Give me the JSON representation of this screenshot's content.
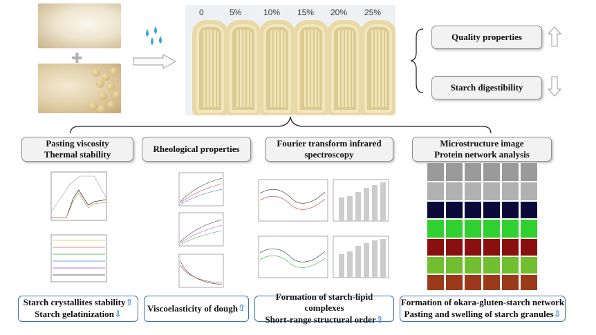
{
  "concentrations": [
    "0",
    "5%",
    "10%",
    "15%",
    "20%",
    "25%"
  ],
  "outcomes": {
    "quality": "Quality properties",
    "digestibility": "Starch digestibility"
  },
  "analyses": {
    "pasting": [
      "Pasting viscosity",
      "Thermal stability"
    ],
    "rheology": "Rheological properties",
    "ftir": [
      "Fourier transform infrared",
      "spectroscopy"
    ],
    "micro": [
      "Microstructure image",
      "Protein network analysis"
    ]
  },
  "results": {
    "r1": [
      "Starch crystallites stability",
      "Starch gelatinization"
    ],
    "r2": "Viscoelasticity of dough",
    "r3": [
      "Formation of starch-lipid complexes",
      "Short-range structural order"
    ],
    "r4": [
      "Formation of okara-gluten-starch network",
      "Pasting and swelling of starch granules"
    ]
  },
  "arrows": {
    "up": "⇧",
    "down": "⇩"
  },
  "colors": {
    "accent_arrow": "#3b8be0",
    "box_border": "#3a6fb5"
  },
  "icons": [
    "water-drops-icon",
    "right-arrow-icon",
    "plus-icon",
    "hollow-up-arrow-icon",
    "hollow-down-arrow-icon"
  ]
}
